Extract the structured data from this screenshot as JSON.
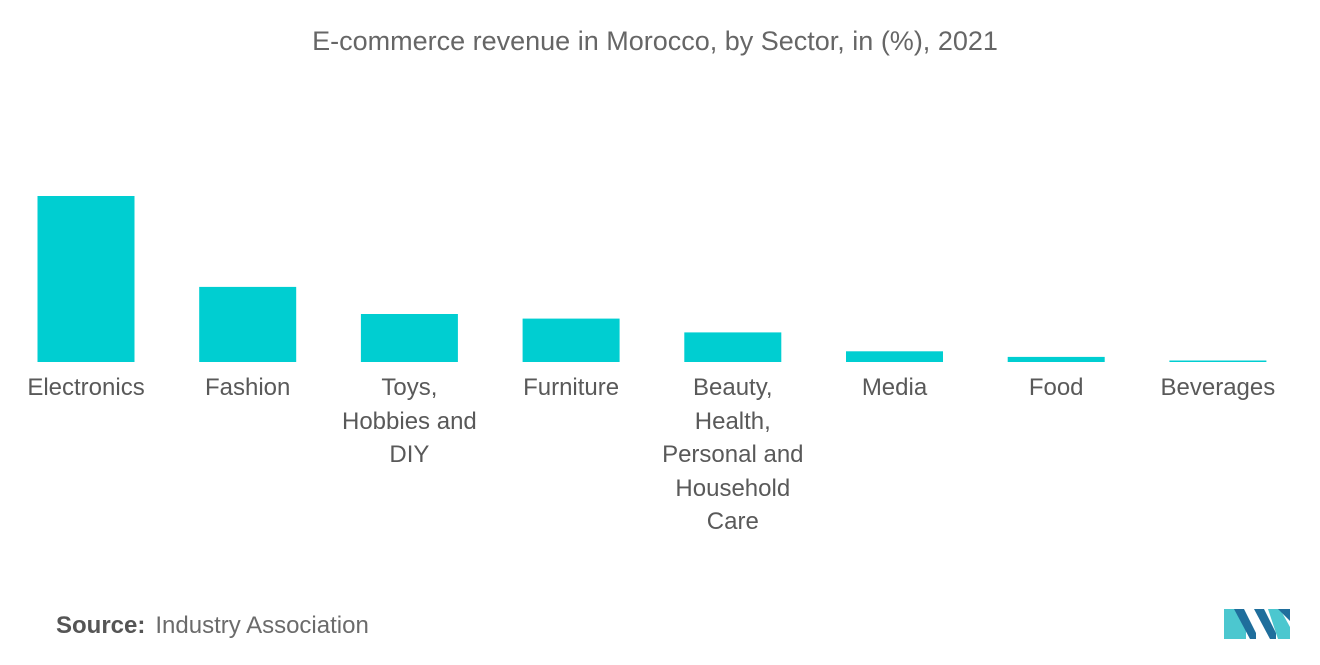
{
  "chart_data": {
    "type": "bar",
    "title": "E-commerce revenue in Morocco, by Sector, in (%), 2021",
    "categories": [
      "Electronics",
      "Fashion",
      "Toys, Hobbies and DIY",
      "Furniture",
      "Beauty, Health, Personal and Household Care",
      "Media",
      "Food",
      "Beverages"
    ],
    "category_lines": [
      [
        "Electronics"
      ],
      [
        "Fashion"
      ],
      [
        "Toys,",
        "Hobbies and",
        "DIY"
      ],
      [
        "Furniture"
      ],
      [
        "Beauty,",
        "Health,",
        "Personal and",
        "Household",
        "Care"
      ],
      [
        "Media"
      ],
      [
        "Food"
      ],
      [
        "Beverages"
      ]
    ],
    "values": [
      32.5,
      14.7,
      9.4,
      8.5,
      5.8,
      2.1,
      1.0,
      0.3
    ],
    "ylim": [
      0,
      32.5
    ],
    "xlabel": "",
    "ylabel": "",
    "grid": false,
    "bar_color": "#00ced1"
  },
  "source": {
    "label": "Source:",
    "text": "Industry Association"
  },
  "logo": {
    "icon": "mordor-intelligence-logo",
    "colors": [
      "#1f6e9c",
      "#4cc7cf"
    ]
  }
}
